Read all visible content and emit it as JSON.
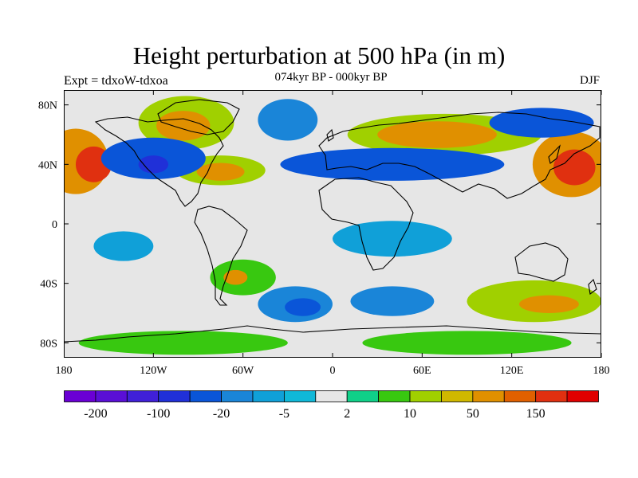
{
  "header": {
    "title": "Height perturbation at 500 hPa (in m)",
    "subtitle": "074kyr BP - 000kyr BP",
    "experiment": "Expt = tdxoW-tdxoa",
    "season": "DJF"
  },
  "map": {
    "lat_ticks": [
      {
        "label": "80N",
        "value": 80
      },
      {
        "label": "40N",
        "value": 40
      },
      {
        "label": "0",
        "value": 0
      },
      {
        "label": "40S",
        "value": -40
      },
      {
        "label": "80S",
        "value": -80
      }
    ],
    "lon_ticks": [
      {
        "label": "180",
        "value": -180
      },
      {
        "label": "120W",
        "value": -120
      },
      {
        "label": "60W",
        "value": -60
      },
      {
        "label": "0",
        "value": 0
      },
      {
        "label": "60E",
        "value": 60
      },
      {
        "label": "120E",
        "value": 120
      },
      {
        "label": "180",
        "value": 180
      }
    ],
    "lon_range": [
      -180,
      180
    ],
    "lat_range": [
      -90,
      90
    ],
    "background_color": "#e6e6e6",
    "anomaly_regions": [
      {
        "lon": -172,
        "lat": 42,
        "rx": 22,
        "ry": 22,
        "level": 5
      },
      {
        "lon": -160,
        "lat": 40,
        "rx": 12,
        "ry": 12,
        "level": 7
      },
      {
        "lon": 160,
        "lat": 40,
        "rx": 26,
        "ry": 22,
        "level": 5
      },
      {
        "lon": 162,
        "lat": 38,
        "rx": 14,
        "ry": 12,
        "level": 7
      },
      {
        "lon": -98,
        "lat": 68,
        "rx": 32,
        "ry": 18,
        "level": 3
      },
      {
        "lon": -100,
        "lat": 66,
        "rx": 18,
        "ry": 10,
        "level": 5
      },
      {
        "lon": -75,
        "lat": 36,
        "rx": 30,
        "ry": 10,
        "level": 3
      },
      {
        "lon": -75,
        "lat": 35,
        "rx": 16,
        "ry": 6,
        "level": 5
      },
      {
        "lon": 75,
        "lat": 60,
        "rx": 65,
        "ry": 14,
        "level": 3
      },
      {
        "lon": 70,
        "lat": 60,
        "rx": 40,
        "ry": 9,
        "level": 5
      },
      {
        "lon": -120,
        "lat": 44,
        "rx": 35,
        "ry": 14,
        "level": -4
      },
      {
        "lon": -120,
        "lat": 40,
        "rx": 10,
        "ry": 6,
        "level": -5
      },
      {
        "lon": 40,
        "lat": 40,
        "rx": 75,
        "ry": 11,
        "level": -4
      },
      {
        "lon": 140,
        "lat": 68,
        "rx": 35,
        "ry": 10,
        "level": -4
      },
      {
        "lon": -30,
        "lat": 70,
        "rx": 20,
        "ry": 14,
        "level": -3
      },
      {
        "lon": -60,
        "lat": -36,
        "rx": 22,
        "ry": 12,
        "level": 2
      },
      {
        "lon": -65,
        "lat": -36,
        "rx": 8,
        "ry": 5,
        "level": 5
      },
      {
        "lon": -25,
        "lat": -54,
        "rx": 25,
        "ry": 12,
        "level": -3
      },
      {
        "lon": -20,
        "lat": -56,
        "rx": 12,
        "ry": 6,
        "level": -4
      },
      {
        "lon": 40,
        "lat": -52,
        "rx": 28,
        "ry": 10,
        "level": -3
      },
      {
        "lon": 135,
        "lat": -52,
        "rx": 45,
        "ry": 14,
        "level": 3
      },
      {
        "lon": 145,
        "lat": -54,
        "rx": 20,
        "ry": 6,
        "level": 5
      },
      {
        "lon": -140,
        "lat": -15,
        "rx": 20,
        "ry": 10,
        "level": -2
      },
      {
        "lon": 40,
        "lat": -10,
        "rx": 40,
        "ry": 12,
        "level": -2
      },
      {
        "lon": -100,
        "lat": -80,
        "rx": 70,
        "ry": 8,
        "level": 2
      },
      {
        "lon": 90,
        "lat": -80,
        "rx": 70,
        "ry": 8,
        "level": 2
      }
    ]
  },
  "colorbar": {
    "colors": [
      "#6a00d4",
      "#5a0fd6",
      "#4020d8",
      "#2030d8",
      "#0a55d8",
      "#1a85d8",
      "#10a0d8",
      "#10b8d8",
      "#e6e6e6",
      "#10d088",
      "#38c810",
      "#a0d000",
      "#d0b800",
      "#e09000",
      "#e06000",
      "#e03010",
      "#e00000"
    ],
    "labels": [
      {
        "text": "-200",
        "boundary": 1
      },
      {
        "text": "-100",
        "boundary": 3
      },
      {
        "text": "-20",
        "boundary": 5
      },
      {
        "text": "-5",
        "boundary": 7
      },
      {
        "text": "2",
        "boundary": 9
      },
      {
        "text": "10",
        "boundary": 11
      },
      {
        "text": "50",
        "boundary": 13
      },
      {
        "text": "150",
        "boundary": 15
      }
    ]
  }
}
